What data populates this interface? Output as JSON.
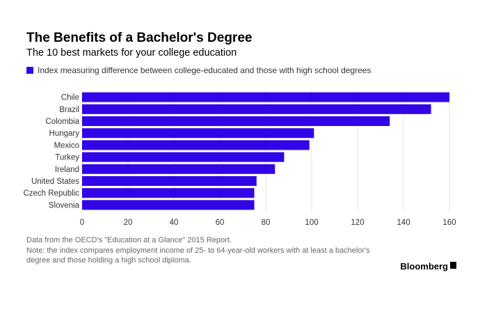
{
  "title": "The Benefits of a Bachelor's Degree",
  "subtitle": "The 10 best markets for your college education",
  "legend_label": "Index measuring difference between college-educated and those with high school degrees",
  "colors": {
    "bar": "#3205e8",
    "grid": "#e6e6e6",
    "axis_text": "#333333"
  },
  "chart_data": {
    "type": "bar",
    "orientation": "horizontal",
    "categories": [
      "Chile",
      "Brazil",
      "Colombia",
      "Hungary",
      "Mexico",
      "Turkey",
      "Ireland",
      "United States",
      "Czech Republic",
      "Slovenia"
    ],
    "values": [
      160,
      152,
      134,
      101,
      99,
      88,
      84,
      76,
      75,
      75
    ],
    "xlim": [
      0,
      160
    ],
    "xticks": [
      0,
      20,
      40,
      60,
      80,
      100,
      120,
      140,
      160
    ],
    "grid": true,
    "legend_placement": "top-left"
  },
  "notes": [
    "Data from the OECD's \"Education at a Glance\" 2015 Report.",
    "Note: the index compares employment income of 25- to 64-year-old workers with at least a bachelor's",
    "degree and those holding a high school diploma."
  ],
  "brand": "Bloomberg",
  "brand_icon": "bloomberg-terminal-icon"
}
